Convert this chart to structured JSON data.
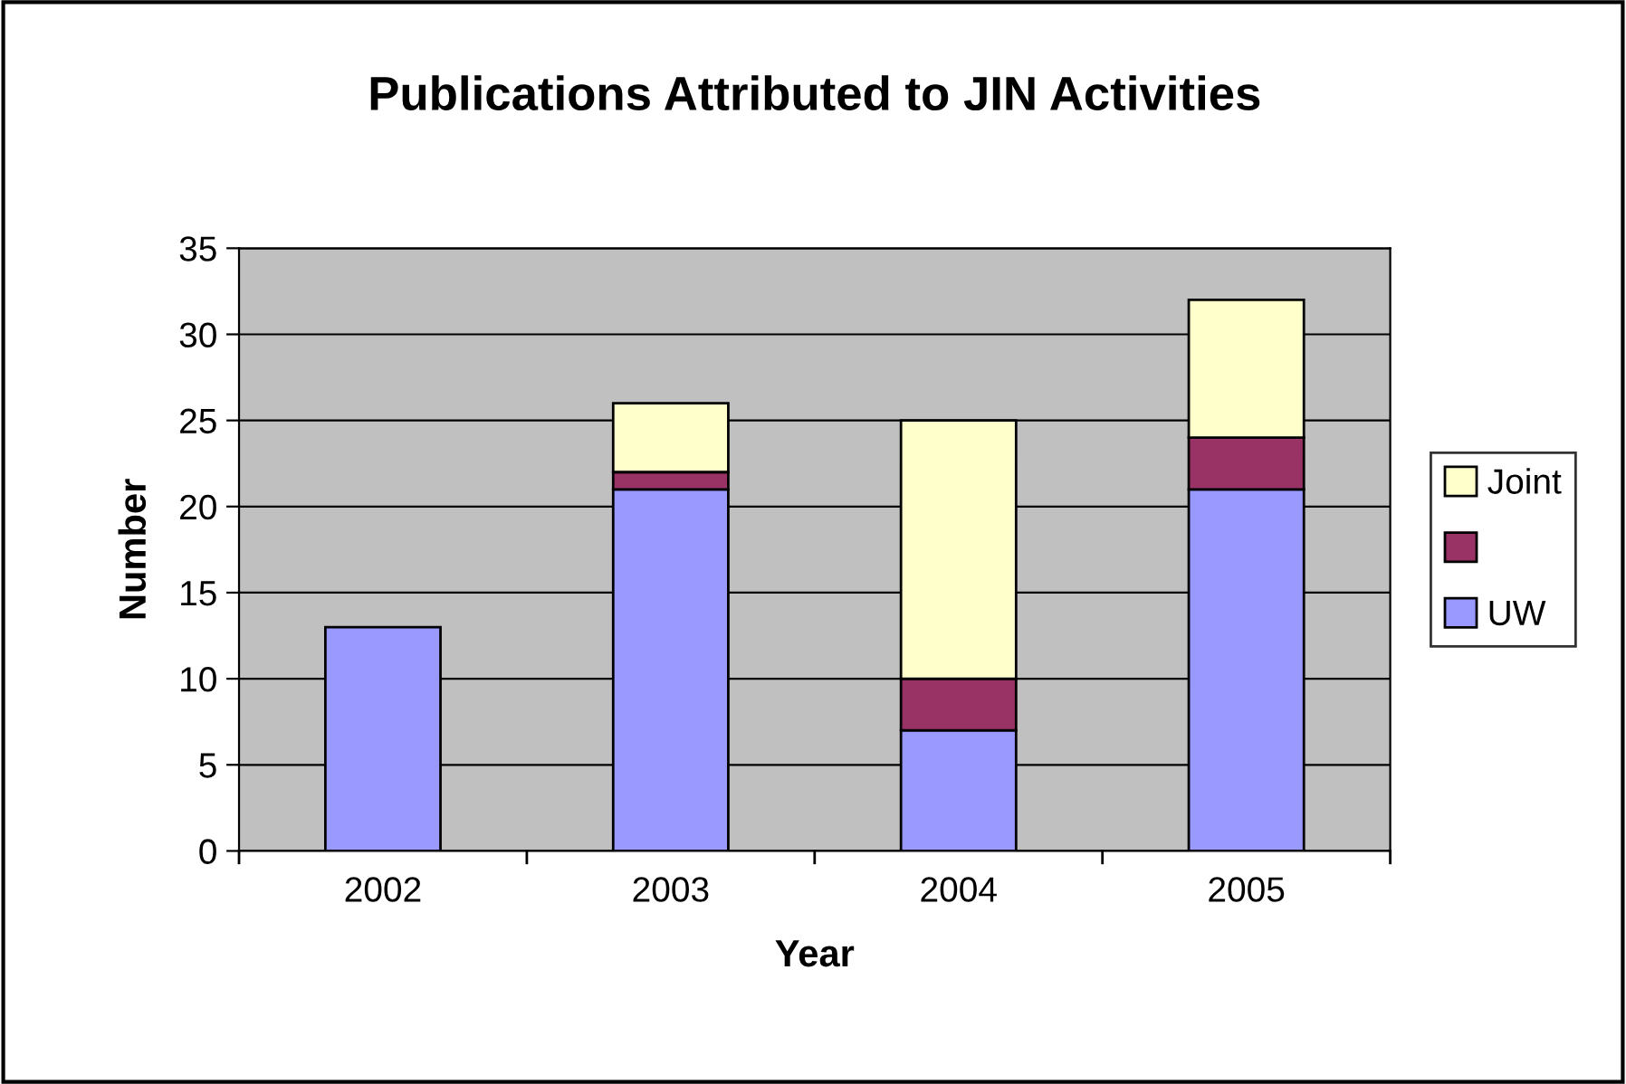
{
  "chart_data": {
    "type": "bar",
    "title": "Publications Attributed to JIN Activities",
    "xlabel": "Year",
    "ylabel": "Number",
    "categories": [
      "2002",
      "2003",
      "2004",
      "2005"
    ],
    "series": [
      {
        "name": "UW",
        "color": "#9999ff",
        "values": [
          13,
          21,
          7,
          21
        ]
      },
      {
        "color": "#993366",
        "values": [
          null,
          1,
          3,
          3
        ]
      },
      {
        "name": "Joint",
        "color": "#ffffcc",
        "values": [
          null,
          4,
          15,
          8
        ]
      }
    ],
    "stacked": true,
    "ylim": [
      0,
      35
    ],
    "yticks": [
      0,
      5,
      10,
      15,
      20,
      25,
      30,
      35
    ],
    "grid": "y",
    "legend": "right"
  }
}
